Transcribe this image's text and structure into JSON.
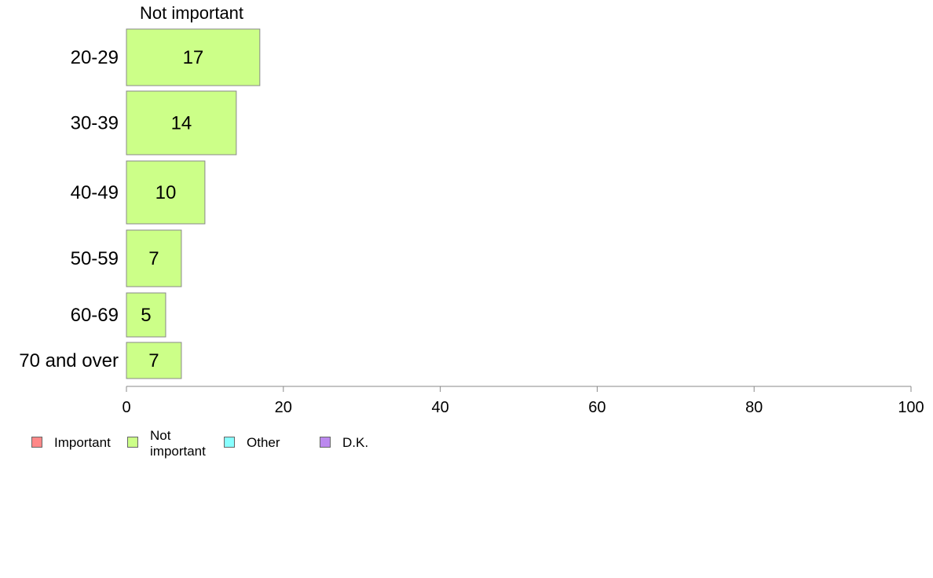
{
  "chart_data": {
    "type": "bar",
    "orientation": "horizontal",
    "series_header": "Not important",
    "categories": [
      "20-29",
      "30-39",
      "40-49",
      "50-59",
      "60-69",
      "70 and over"
    ],
    "series": [
      {
        "name": "Not important",
        "color": "#ccff88",
        "values": [
          17,
          14,
          10,
          7,
          5,
          7
        ]
      }
    ],
    "x_ticks": [
      "0",
      "20",
      "40",
      "60",
      "80",
      "100"
    ],
    "xlim": [
      0,
      100
    ],
    "grid": false,
    "legend_position": "bottom-left",
    "legend": [
      {
        "label": "Important",
        "color": "#ff8888"
      },
      {
        "label": "Not important",
        "color": "#ccff88"
      },
      {
        "label": "Other",
        "color": "#88ffff"
      },
      {
        "label": "D.K.",
        "color": "#bb88ee"
      }
    ]
  }
}
